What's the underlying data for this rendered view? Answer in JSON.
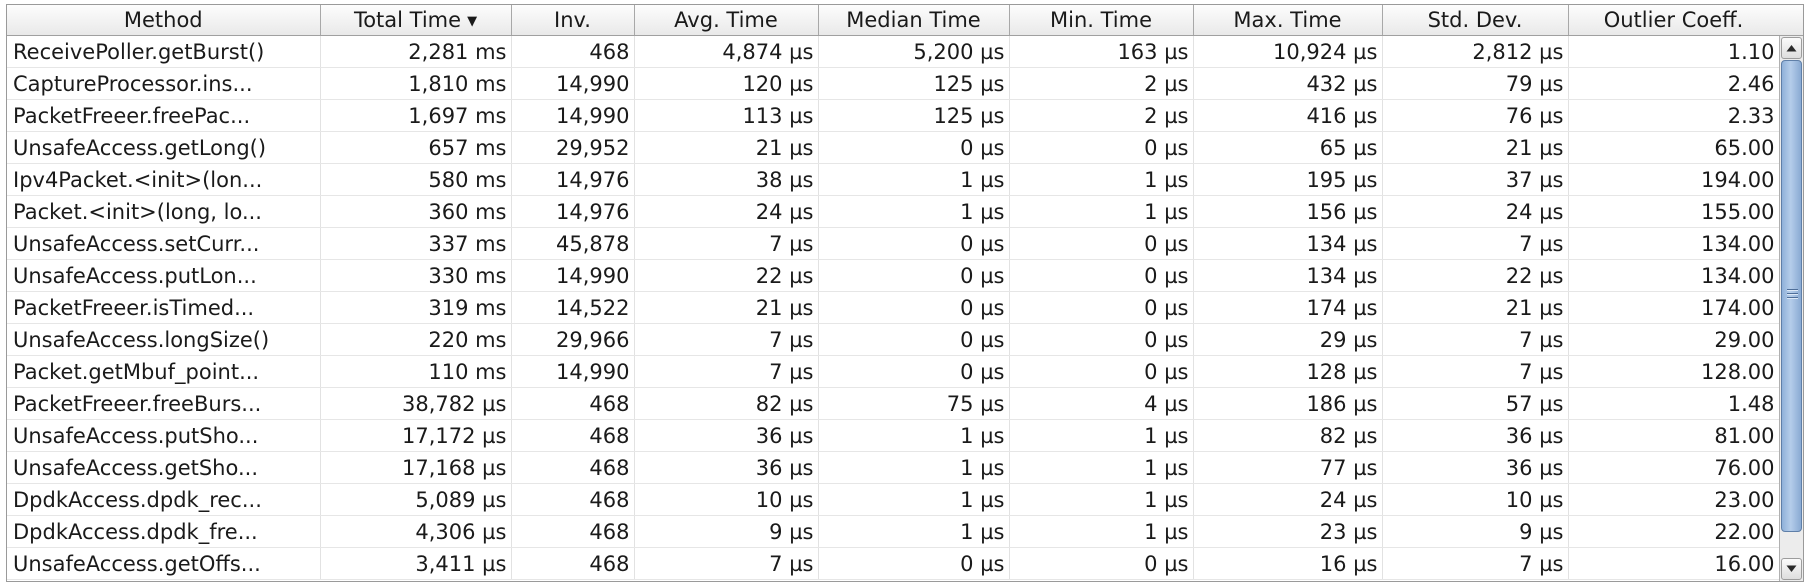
{
  "table": {
    "columns": [
      {
        "label": "Method",
        "sorted": false
      },
      {
        "label": "Total Time",
        "sorted": true,
        "sort_direction": "descending"
      },
      {
        "label": "Inv.",
        "sorted": false
      },
      {
        "label": "Avg. Time",
        "sorted": false
      },
      {
        "label": "Median Time",
        "sorted": false
      },
      {
        "label": "Min. Time",
        "sorted": false
      },
      {
        "label": "Max. Time",
        "sorted": false
      },
      {
        "label": "Std. Dev.",
        "sorted": false
      },
      {
        "label": "Outlier Coeff.",
        "sorted": false
      }
    ],
    "sort_icon": "caret-down-icon",
    "rows": [
      [
        "ReceivePoller.getBurst()",
        "2,281 ms",
        "468",
        "4,874 µs",
        "5,200 µs",
        "163 µs",
        "10,924 µs",
        "2,812 µs",
        "1.10"
      ],
      [
        "CaptureProcessor.ins...",
        "1,810 ms",
        "14,990",
        "120 µs",
        "125 µs",
        "2 µs",
        "432 µs",
        "79 µs",
        "2.46"
      ],
      [
        "PacketFreeer.freePac...",
        "1,697 ms",
        "14,990",
        "113 µs",
        "125 µs",
        "2 µs",
        "416 µs",
        "76 µs",
        "2.33"
      ],
      [
        "UnsafeAccess.getLong()",
        "657 ms",
        "29,952",
        "21 µs",
        "0 µs",
        "0 µs",
        "65 µs",
        "21 µs",
        "65.00"
      ],
      [
        "Ipv4Packet.<init>(lon...",
        "580 ms",
        "14,976",
        "38 µs",
        "1 µs",
        "1 µs",
        "195 µs",
        "37 µs",
        "194.00"
      ],
      [
        "Packet.<init>(long, lo...",
        "360 ms",
        "14,976",
        "24 µs",
        "1 µs",
        "1 µs",
        "156 µs",
        "24 µs",
        "155.00"
      ],
      [
        "UnsafeAccess.setCurr...",
        "337 ms",
        "45,878",
        "7 µs",
        "0 µs",
        "0 µs",
        "134 µs",
        "7 µs",
        "134.00"
      ],
      [
        "UnsafeAccess.putLon...",
        "330 ms",
        "14,990",
        "22 µs",
        "0 µs",
        "0 µs",
        "134 µs",
        "22 µs",
        "134.00"
      ],
      [
        "PacketFreeer.isTimed...",
        "319 ms",
        "14,522",
        "21 µs",
        "0 µs",
        "0 µs",
        "174 µs",
        "21 µs",
        "174.00"
      ],
      [
        "UnsafeAccess.longSize()",
        "220 ms",
        "29,966",
        "7 µs",
        "0 µs",
        "0 µs",
        "29 µs",
        "7 µs",
        "29.00"
      ],
      [
        "Packet.getMbuf_point...",
        "110 ms",
        "14,990",
        "7 µs",
        "0 µs",
        "0 µs",
        "128 µs",
        "7 µs",
        "128.00"
      ],
      [
        "PacketFreeer.freeBurs...",
        "38,782 µs",
        "468",
        "82 µs",
        "75 µs",
        "4 µs",
        "186 µs",
        "57 µs",
        "1.48"
      ],
      [
        "UnsafeAccess.putSho...",
        "17,172 µs",
        "468",
        "36 µs",
        "1 µs",
        "1 µs",
        "82 µs",
        "36 µs",
        "81.00"
      ],
      [
        "UnsafeAccess.getSho...",
        "17,168 µs",
        "468",
        "36 µs",
        "1 µs",
        "1 µs",
        "77 µs",
        "36 µs",
        "76.00"
      ],
      [
        "DpdkAccess.dpdk_rec...",
        "5,089 µs",
        "468",
        "10 µs",
        "1 µs",
        "1 µs",
        "24 µs",
        "10 µs",
        "23.00"
      ],
      [
        "DpdkAccess.dpdk_fre...",
        "4,306 µs",
        "468",
        "9 µs",
        "1 µs",
        "1 µs",
        "23 µs",
        "9 µs",
        "22.00"
      ],
      [
        "UnsafeAccess.getOffs...",
        "3,411 µs",
        "468",
        "7 µs",
        "0 µs",
        "0 µs",
        "16 µs",
        "7 µs",
        "16.00"
      ]
    ]
  },
  "scrollbar": {
    "up_icon": "arrow-up-icon",
    "down_icon": "arrow-down-icon",
    "grip_icon": "grip-icon",
    "thumb_color": "#9dbce2"
  }
}
